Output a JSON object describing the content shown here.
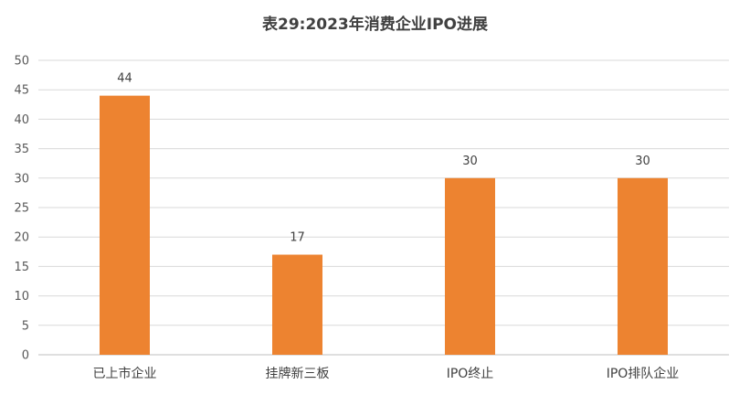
{
  "chart_data": {
    "type": "bar",
    "title": "表29:2023年消费企业IPO进展",
    "xlabel": "",
    "ylabel": "",
    "categories": [
      "已上市企业",
      "挂牌新三板",
      "IPO终止",
      "IPO排队企业"
    ],
    "values": [
      44,
      17,
      30,
      30
    ],
    "value_labels": [
      "44",
      "17",
      "30",
      "30"
    ],
    "ylim": [
      0,
      50
    ],
    "y_ticks": [
      0,
      5,
      10,
      15,
      20,
      25,
      30,
      35,
      40,
      45,
      50
    ],
    "y_tick_labels": [
      "0",
      "5",
      "10",
      "15",
      "20",
      "25",
      "30",
      "35",
      "40",
      "45",
      "50"
    ],
    "grid": true,
    "legend": "none",
    "colors": {
      "bar": "#ed8330",
      "grid": "#d9d9d9",
      "axis": "#bfbfbf",
      "title": "#404040",
      "text": "#595959"
    }
  }
}
